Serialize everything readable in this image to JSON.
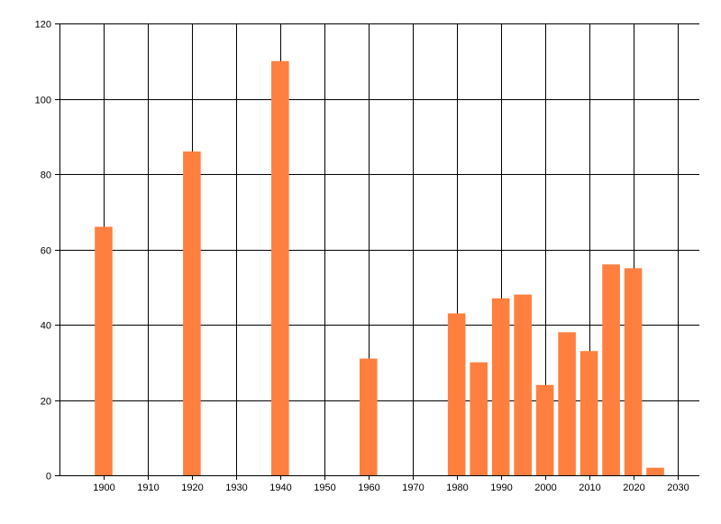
{
  "chart_data": {
    "type": "bar",
    "title": "",
    "xlabel": "",
    "ylabel": "",
    "x": [
      1900,
      1920,
      1940,
      1960,
      1980,
      1985,
      1990,
      1995,
      2000,
      2005,
      2010,
      2015,
      2020,
      2025
    ],
    "values": [
      66,
      86,
      110,
      31,
      43,
      30,
      47,
      48,
      24,
      38,
      33,
      56,
      55,
      2
    ],
    "bar_width_years": 4,
    "xlim": [
      1890,
      2035
    ],
    "ylim": [
      0,
      120
    ],
    "x_ticks": [
      1900,
      1910,
      1920,
      1930,
      1940,
      1950,
      1960,
      1970,
      1980,
      1990,
      2000,
      2010,
      2020,
      2030
    ],
    "y_ticks": [
      0,
      20,
      40,
      60,
      80,
      100,
      120
    ],
    "grid": true,
    "legend": "none",
    "bar_color": "#FF7F3F",
    "grid_color": "#000000",
    "axis_color": "#000000"
  }
}
